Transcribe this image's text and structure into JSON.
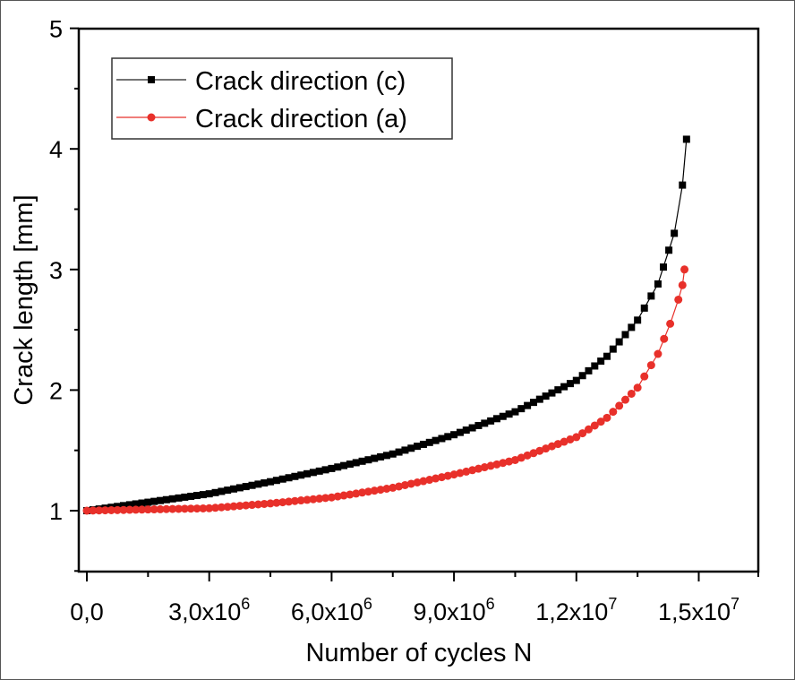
{
  "chart_data": {
    "type": "line",
    "title": "",
    "xlabel": "Number of cycles  N",
    "ylabel": "Crack length [mm]",
    "xlim": [
      -100000,
      16500000
    ],
    "ylim": [
      0.5,
      5
    ],
    "grid": false,
    "legend_position": "upper left",
    "x_ticks": [
      {
        "value": 0,
        "base": "0,0",
        "exp": ""
      },
      {
        "value": 3000000,
        "base": "3,0x10",
        "exp": "6"
      },
      {
        "value": 6000000,
        "base": "6,0x10",
        "exp": "6"
      },
      {
        "value": 9000000,
        "base": "9,0x10",
        "exp": "6"
      },
      {
        "value": 12000000,
        "base": "1,2x10",
        "exp": "7"
      },
      {
        "value": 15000000,
        "base": "1,5x10",
        "exp": "7"
      }
    ],
    "y_ticks": [
      1,
      2,
      3,
      4,
      5
    ],
    "series": [
      {
        "name": "Crack direction (c)",
        "color": "#000000",
        "marker": "square",
        "x": [
          0,
          1500000,
          3000000,
          4500000,
          6000000,
          7500000,
          9000000,
          10500000,
          12000000,
          12750000,
          13500000,
          14000000,
          14400000,
          14600000,
          14700000
        ],
        "y": [
          1.0,
          1.07,
          1.14,
          1.24,
          1.35,
          1.47,
          1.63,
          1.82,
          2.08,
          2.28,
          2.58,
          2.88,
          3.3,
          3.7,
          4.08
        ]
      },
      {
        "name": "Crack direction (a)",
        "color": "#e8302a",
        "marker": "circle",
        "x": [
          0,
          1500000,
          3000000,
          4500000,
          6000000,
          7500000,
          9000000,
          10500000,
          12000000,
          12750000,
          13500000,
          14000000,
          14300000,
          14500000,
          14600000,
          14650000
        ],
        "y": [
          1.0,
          1.01,
          1.02,
          1.06,
          1.11,
          1.19,
          1.3,
          1.42,
          1.61,
          1.77,
          2.02,
          2.3,
          2.55,
          2.75,
          2.87,
          3.0
        ]
      }
    ]
  },
  "legend": {
    "items": [
      {
        "label": "Crack direction (c)"
      },
      {
        "label": "Crack direction (a)"
      }
    ]
  }
}
